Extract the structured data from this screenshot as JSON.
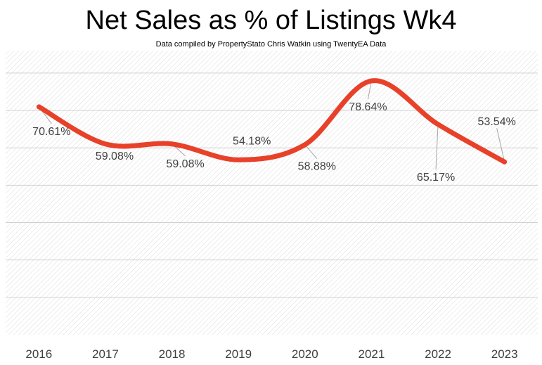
{
  "chart_data": {
    "type": "line",
    "title": "Net Sales as % of Listings Wk4",
    "subtitle": "Data compiled by PropertyStato Chris Watkin using TwentyEA Data",
    "categories": [
      "2016",
      "2017",
      "2018",
      "2019",
      "2020",
      "2021",
      "2022",
      "2023"
    ],
    "values": [
      70.61,
      59.08,
      59.08,
      54.18,
      58.88,
      78.64,
      65.17,
      53.54
    ],
    "data_labels": [
      "70.61%",
      "59.08%",
      "59.08%",
      "54.18%",
      "58.88%",
      "78.64%",
      "65.17%",
      "53.54%"
    ],
    "ylim": [
      0,
      88
    ],
    "grid": true,
    "line_color": "#e8412a",
    "xlabel": "",
    "ylabel": ""
  }
}
